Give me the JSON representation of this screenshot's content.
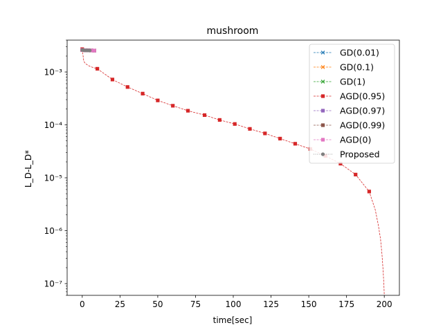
{
  "chart_data": {
    "type": "line",
    "title": "mushroom",
    "xlabel": "time[sec]",
    "ylabel": "L_D-L_D*",
    "xlim": [
      -10,
      210
    ],
    "ylim": [
      6e-08,
      0.004
    ],
    "yscale": "log",
    "grid": false,
    "legend_position": "upper right",
    "xticks": [
      0,
      25,
      50,
      75,
      100,
      125,
      150,
      175,
      200
    ],
    "xtick_labels": [
      "0",
      "25",
      "50",
      "75",
      "100",
      "125",
      "150",
      "175",
      "200"
    ],
    "yticks": [
      1e-07,
      1e-06,
      1e-05,
      0.0001,
      0.001
    ],
    "ytick_labels": [
      "10⁻⁷",
      "10⁻⁶",
      "10⁻⁵",
      "10⁻⁴",
      "10⁻³"
    ],
    "series": [
      {
        "name": "GD(0.01)",
        "color": "#1f77b4",
        "marker": "x",
        "linestyle": "dashed",
        "x": [
          0,
          2,
          4,
          6,
          8
        ],
        "y": [
          0.0026,
          0.00258,
          0.00256,
          0.00255,
          0.00254
        ]
      },
      {
        "name": "GD(0.1)",
        "color": "#ff7f0e",
        "marker": "x",
        "linestyle": "dashed",
        "x": [
          0,
          2,
          4,
          6,
          8
        ],
        "y": [
          0.0026,
          0.00258,
          0.00256,
          0.00255,
          0.00254
        ]
      },
      {
        "name": "GD(1)",
        "color": "#2ca02c",
        "marker": "x",
        "linestyle": "dashed",
        "x": [
          0,
          2,
          4,
          6,
          8
        ],
        "y": [
          0.0026,
          0.00258,
          0.00256,
          0.00255,
          0.00254
        ]
      },
      {
        "name": "AGD(0.95)",
        "color": "#d62728",
        "marker": "s",
        "linestyle": "dashed",
        "x": [
          0,
          1,
          2,
          3,
          5,
          7,
          10,
          20,
          30,
          40,
          50,
          60,
          70,
          81,
          91,
          101,
          111,
          121,
          131,
          141,
          151,
          161,
          171,
          181,
          190,
          194,
          196,
          197.5,
          198.5,
          199.2,
          199.7,
          200
        ],
        "y": [
          0.0027,
          0.0016,
          0.00145,
          0.00138,
          0.00128,
          0.00122,
          0.00115,
          0.00072,
          0.00052,
          0.00039,
          0.00029,
          0.00023,
          0.000185,
          0.000153,
          0.000124,
          0.000104,
          8.4e-05,
          6.9e-05,
          5.5e-05,
          4.4e-05,
          3.5e-05,
          2.6e-05,
          1.85e-05,
          1.15e-05,
          5.5e-06,
          2.5e-06,
          1.3e-06,
          7e-07,
          3.5e-07,
          1.8e-07,
          1e-07,
          6e-08
        ],
        "markers_at": [
          0,
          10,
          20,
          30,
          40,
          50,
          60,
          70,
          81,
          91,
          101,
          111,
          121,
          131,
          141,
          151,
          161,
          171,
          181,
          190
        ]
      },
      {
        "name": "AGD(0.97)",
        "color": "#9467bd",
        "marker": "s",
        "linestyle": "dashed",
        "x": [
          0,
          2,
          4,
          6,
          8
        ],
        "y": [
          0.0026,
          0.00257,
          0.00256,
          0.00255,
          0.00254
        ]
      },
      {
        "name": "AGD(0.99)",
        "color": "#8c564b",
        "marker": "s",
        "linestyle": "dashed",
        "x": [
          0,
          2,
          4,
          6,
          8
        ],
        "y": [
          0.0026,
          0.00257,
          0.00256,
          0.00255,
          0.00254
        ]
      },
      {
        "name": "AGD(0)",
        "color": "#e377c2",
        "marker": "s",
        "linestyle": "dashed",
        "x": [
          0,
          2,
          4,
          6,
          8
        ],
        "y": [
          0.0026,
          0.00257,
          0.00256,
          0.00255,
          0.00254
        ]
      },
      {
        "name": "Proposed",
        "color": "#7f7f7f",
        "marker": "o",
        "linestyle": "dotted",
        "x": [
          0,
          1,
          2,
          3,
          4,
          5
        ],
        "y": [
          0.0026,
          0.00258,
          0.00256,
          0.00256,
          0.00255,
          0.00255
        ]
      }
    ]
  }
}
